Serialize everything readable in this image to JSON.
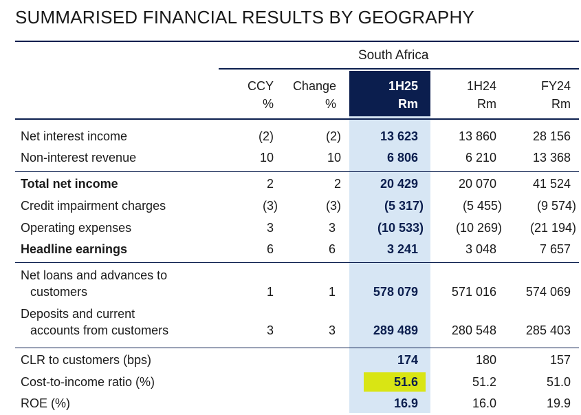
{
  "title": "SUMMARISED FINANCIAL RESULTS BY GEOGRAPHY",
  "region": "South Africa",
  "columns": [
    {
      "line1": "CCY",
      "line2": "%"
    },
    {
      "line1": "Change",
      "line2": "%"
    },
    {
      "line1": "1H25",
      "line2": "Rm"
    },
    {
      "line1": "1H24",
      "line2": "Rm"
    },
    {
      "line1": "FY24",
      "line2": "Rm"
    }
  ],
  "rows": [
    {
      "label": "Net interest income",
      "ccy": "(2)",
      "change": "(2)",
      "h125": "13 623",
      "h124": "13 860",
      "fy24": "28 156"
    },
    {
      "label": "Non-interest revenue",
      "ccy": "10",
      "change": "10",
      "h125": "6 806",
      "h124": "6 210",
      "fy24": "13 368"
    },
    {
      "label": "Total net income",
      "ccy": "2",
      "change": "2",
      "h125": "20 429",
      "h124": "20 070",
      "fy24": "41 524"
    },
    {
      "label": "Credit impairment charges",
      "ccy": "(3)",
      "change": "(3)",
      "h125": "(5 317)",
      "h124": "(5 455)",
      "fy24": "(9 574)"
    },
    {
      "label": "Operating expenses",
      "ccy": "3",
      "change": "3",
      "h125": "(10 533)",
      "h124": "(10 269)",
      "fy24": "(21 194)"
    },
    {
      "label": "Headline earnings",
      "ccy": "6",
      "change": "6",
      "h125": "3 241",
      "h124": "3 048",
      "fy24": "7 657"
    },
    {
      "label": "Net loans and advances to",
      "label2": "customers",
      "ccy": "1",
      "change": "1",
      "h125": "578 079",
      "h124": "571 016",
      "fy24": "574 069"
    },
    {
      "label": "Deposits and current",
      "label2": "accounts from customers",
      "ccy": "3",
      "change": "3",
      "h125": "289 489",
      "h124": "280 548",
      "fy24": "285 403"
    },
    {
      "label": "CLR to customers (bps)",
      "ccy": "",
      "change": "",
      "h125": "174",
      "h124": "180",
      "fy24": "157"
    },
    {
      "label": "Cost-to-income ratio (%)",
      "ccy": "",
      "change": "",
      "h125": "51.6",
      "h124": "51.2",
      "fy24": "51.0"
    },
    {
      "label": "ROE (%)",
      "ccy": "",
      "change": "",
      "h125": "16.9",
      "h124": "16.0",
      "fy24": "19.9"
    }
  ],
  "colors": {
    "navy": "#0b1e4e",
    "band": "#d7e6f4",
    "highlight": "#d9e514"
  }
}
